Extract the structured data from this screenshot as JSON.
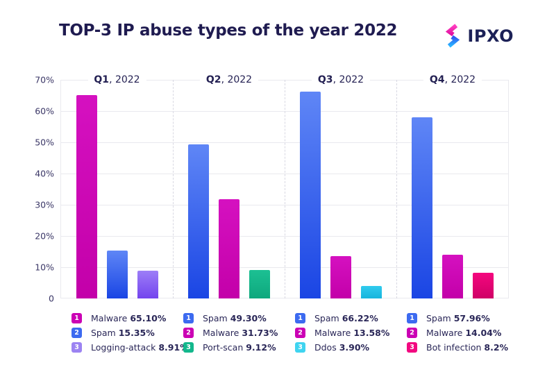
{
  "header": {
    "title": "TOP-3 IP abuse types of the year 2022",
    "brand": "IPXO"
  },
  "chart_data": {
    "type": "bar",
    "title": "TOP-3 IP abuse types of the year 2022",
    "ylim": [
      0,
      70
    ],
    "grid": true,
    "legend_position": "bottom",
    "y_ticks": [
      {
        "label": "70%",
        "value": 70
      },
      {
        "label": "60%",
        "value": 60
      },
      {
        "label": "50%",
        "value": 50
      },
      {
        "label": "40%",
        "value": 40
      },
      {
        "label": "30%",
        "value": 30
      },
      {
        "label": "20%",
        "value": 20
      },
      {
        "label": "10%",
        "value": 10
      },
      {
        "label": "0",
        "value": 0
      }
    ],
    "groups": [
      {
        "quarter": "Q1",
        "year_suffix": ", 2022",
        "bars": [
          {
            "rank": "1",
            "name": "Malware",
            "value": 65.1,
            "display": "65.10%",
            "color": "magenta"
          },
          {
            "rank": "2",
            "name": "Spam",
            "value": 15.35,
            "display": "15.35%",
            "color": "blue"
          },
          {
            "rank": "3",
            "name": "Logging-attack",
            "value": 8.91,
            "display": "8.91%",
            "color": "purple"
          }
        ]
      },
      {
        "quarter": "Q2",
        "year_suffix": ", 2022",
        "bars": [
          {
            "rank": "1",
            "name": "Spam",
            "value": 49.3,
            "display": "49.30%",
            "color": "blue"
          },
          {
            "rank": "2",
            "name": "Malware",
            "value": 31.73,
            "display": "31.73%",
            "color": "magenta"
          },
          {
            "rank": "3",
            "name": "Port-scan",
            "value": 9.12,
            "display": "9.12%",
            "color": "green"
          }
        ]
      },
      {
        "quarter": "Q3",
        "year_suffix": ", 2022",
        "bars": [
          {
            "rank": "1",
            "name": "Spam",
            "value": 66.22,
            "display": "66.22%",
            "color": "blue"
          },
          {
            "rank": "2",
            "name": "Malware",
            "value": 13.58,
            "display": "13.58%",
            "color": "magenta"
          },
          {
            "rank": "3",
            "name": "Ddos",
            "value": 3.9,
            "display": "3.90%",
            "color": "cyan"
          }
        ]
      },
      {
        "quarter": "Q4",
        "year_suffix": ", 2022",
        "bars": [
          {
            "rank": "1",
            "name": "Spam",
            "value": 57.96,
            "display": "57.96%",
            "color": "blue"
          },
          {
            "rank": "2",
            "name": "Malware",
            "value": 14.04,
            "display": "14.04%",
            "color": "magenta"
          },
          {
            "rank": "3",
            "name": "Bot infection",
            "value": 8.2,
            "display": "8.2%",
            "color": "pinkred"
          }
        ]
      }
    ],
    "palette": {
      "magenta": {
        "top": "#d511c0",
        "bottom": "#c300a9",
        "legend": "#cb00b4"
      },
      "blue": {
        "top": "#5f86f6",
        "bottom": "#1a45e4",
        "legend": "#3c6af0"
      },
      "purple": {
        "top": "#9d7ef7",
        "bottom": "#7344ee",
        "legend": "#9c83f2"
      },
      "green": {
        "top": "#1cc093",
        "bottom": "#0ea87d",
        "legend": "#13b78c"
      },
      "cyan": {
        "top": "#30cbee",
        "bottom": "#17b5dd",
        "legend": "#3fd4f0"
      },
      "pinkred": {
        "top": "#f5077f",
        "bottom": "#cf0066",
        "legend": "#f20880"
      }
    }
  }
}
